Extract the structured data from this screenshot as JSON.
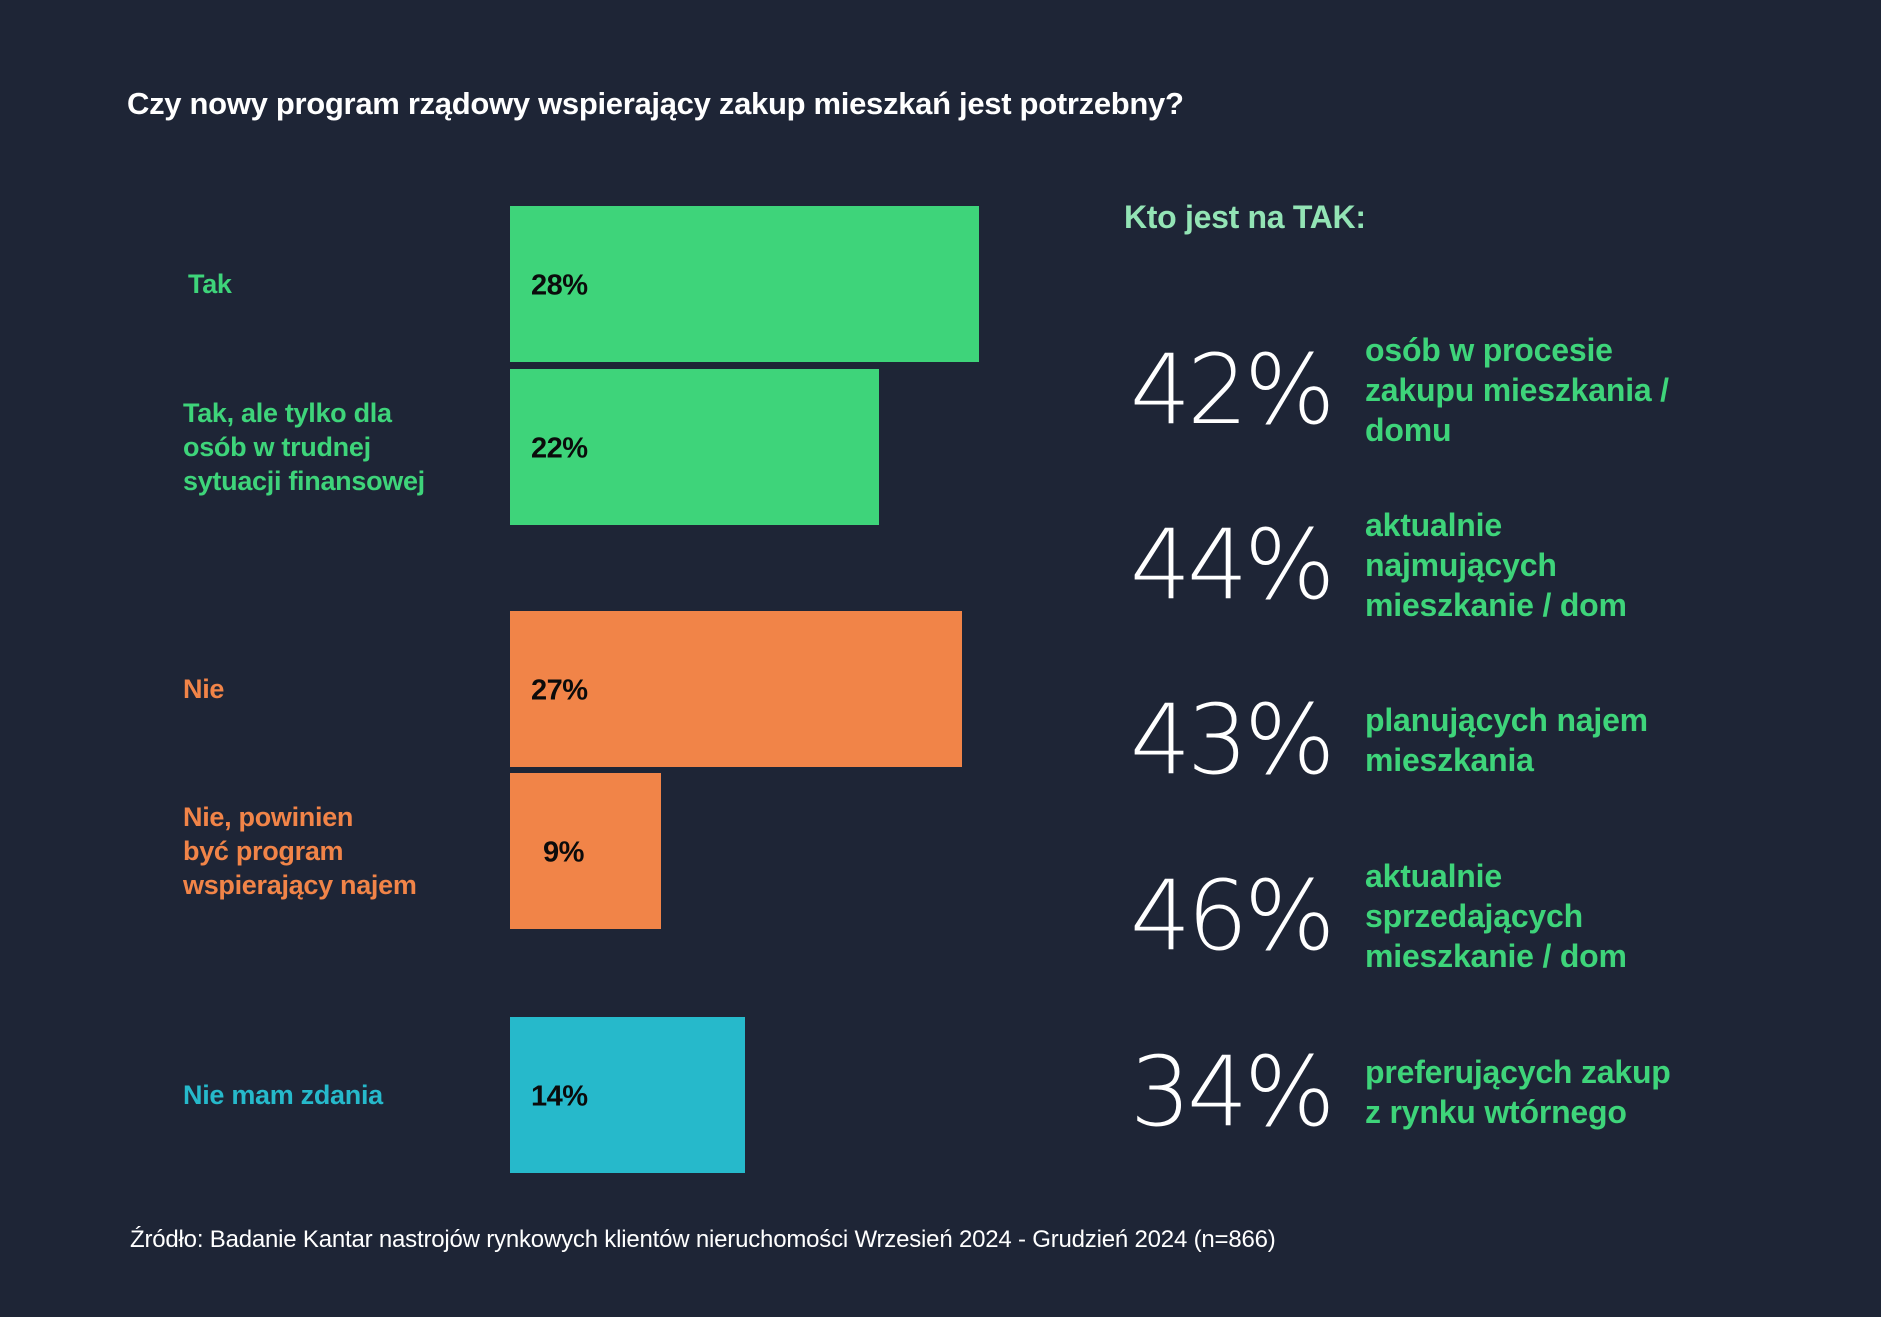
{
  "title": "Czy nowy program rządowy wspierający zakup mieszkań jest potrzebny?",
  "colors": {
    "background": "#1e2536",
    "yes": "#3ed47a",
    "no": "#f18448",
    "neutral": "#26b9cb",
    "heading_mint": "#93e4b5",
    "value_text": "#0b0b0b"
  },
  "chart_data": {
    "type": "bar",
    "orientation": "horizontal",
    "title": "Czy nowy program rządowy wspierający zakup mieszkań jest potrzebny?",
    "xlabel": "",
    "ylabel": "",
    "unit": "%",
    "categories": [
      [
        "Tak"
      ],
      [
        "Tak, ale tylko dla",
        "osób w trudnej",
        "sytuacji finansowej"
      ],
      [
        "Nie"
      ],
      [
        "Nie, powinien",
        "być program",
        "wspierający najem"
      ],
      [
        "Nie mam zdania"
      ]
    ],
    "values": [
      28,
      22,
      27,
      9,
      14
    ],
    "value_labels": [
      "28%",
      "22%",
      "27%",
      "9%",
      "14%"
    ],
    "groups": [
      "yes",
      "yes",
      "no",
      "no",
      "neutral"
    ],
    "xlim": [
      0,
      100
    ],
    "grid": false,
    "legend": "none"
  },
  "side_panel": {
    "heading": "Kto jest na TAK:",
    "stats": [
      {
        "value": "42%",
        "lines": [
          "osób w procesie",
          "zakupu mieszkania /",
          "domu"
        ]
      },
      {
        "value": "44%",
        "lines": [
          "aktualnie",
          "najmujących",
          "mieszkanie / dom"
        ]
      },
      {
        "value": "43%",
        "lines": [
          "planujących najem",
          "mieszkania"
        ]
      },
      {
        "value": "46%",
        "lines": [
          "aktualnie",
          "sprzedających",
          "mieszkanie / dom"
        ]
      },
      {
        "value": "34%",
        "lines": [
          "preferujących zakup",
          "z rynku wtórnego"
        ]
      }
    ]
  },
  "source": "Źródło: Badanie Kantar nastrojów rynkowych klientów nieruchomości Wrzesień 2024 - Grudzień 2024 (n=866)"
}
